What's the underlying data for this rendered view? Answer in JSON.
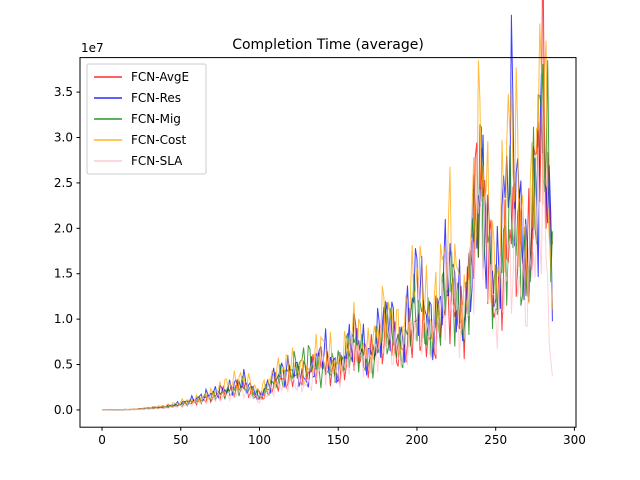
{
  "chart_data": {
    "type": "line",
    "title": "Completion Time (average)",
    "xlabel": "",
    "ylabel": "",
    "y_offset_label": "1e7",
    "xlim": [
      -14,
      301
    ],
    "ylim": [
      -1900000,
      38800000
    ],
    "xticks": [
      0,
      50,
      100,
      150,
      200,
      250,
      300
    ],
    "xtick_labels": [
      "0",
      "50",
      "100",
      "150",
      "200",
      "250",
      "300"
    ],
    "yticks": [
      0,
      5000000,
      10000000,
      15000000,
      20000000,
      25000000,
      30000000,
      35000000
    ],
    "ytick_labels": [
      "0.0",
      "0.5",
      "1.0",
      "1.5",
      "2.0",
      "2.5",
      "3.0",
      "3.5"
    ],
    "grid": false,
    "legend_position": "top-left",
    "series": [
      {
        "name": "FCN-AvgE",
        "color": "#ff0000",
        "x": [
          0,
          20,
          40,
          50,
          60,
          70,
          80,
          90,
          100,
          110,
          120,
          130,
          140,
          150,
          160,
          170,
          180,
          190,
          200,
          210,
          220,
          230,
          240,
          250,
          260,
          270,
          280,
          286
        ],
        "values": [
          0,
          50000,
          300000,
          500000,
          900000,
          1300000,
          2000000,
          2500000,
          1200000,
          2800000,
          3400000,
          4000000,
          5000000,
          3500000,
          6500000,
          5500000,
          8000000,
          6000000,
          9000000,
          7000000,
          12000000,
          9000000,
          25500000,
          10000000,
          20000000,
          15000000,
          34500000,
          15000000
        ]
      },
      {
        "name": "FCN-Res",
        "color": "#0000ff",
        "x": [
          0,
          20,
          40,
          50,
          60,
          70,
          80,
          90,
          100,
          110,
          120,
          130,
          140,
          150,
          160,
          170,
          180,
          190,
          200,
          210,
          220,
          230,
          240,
          250,
          260,
          270,
          280,
          286
        ],
        "values": [
          0,
          60000,
          350000,
          700000,
          1200000,
          1800000,
          2200000,
          3100000,
          1500000,
          3500000,
          4500000,
          3000000,
          6500000,
          4000000,
          8000000,
          5500000,
          10000000,
          7000000,
          14000000,
          8000000,
          16000000,
          9000000,
          24000000,
          12000000,
          30000000,
          14000000,
          28000000,
          16000000
        ]
      },
      {
        "name": "FCN-Mig",
        "color": "#008000",
        "x": [
          0,
          20,
          40,
          50,
          60,
          70,
          80,
          90,
          100,
          110,
          120,
          130,
          140,
          150,
          160,
          170,
          180,
          190,
          200,
          210,
          220,
          230,
          240,
          250,
          260,
          270,
          280,
          286
        ],
        "values": [
          0,
          40000,
          250000,
          600000,
          1000000,
          1500000,
          1800000,
          2600000,
          1300000,
          3000000,
          4200000,
          5500000,
          3800000,
          5000000,
          7000000,
          4500000,
          9000000,
          6000000,
          11000000,
          7500000,
          13500000,
          8500000,
          24000000,
          11000000,
          21000000,
          13000000,
          34000000,
          17500000
        ]
      },
      {
        "name": "FCN-Cost",
        "color": "#ffa500",
        "x": [
          0,
          20,
          40,
          50,
          60,
          70,
          80,
          90,
          100,
          110,
          120,
          130,
          140,
          150,
          160,
          170,
          180,
          190,
          200,
          210,
          220,
          230,
          240,
          250,
          260,
          270,
          280,
          286
        ],
        "values": [
          0,
          70000,
          400000,
          800000,
          1100000,
          1700000,
          2800000,
          3300000,
          1800000,
          3800000,
          5000000,
          3700000,
          7000000,
          4500000,
          8500000,
          6000000,
          10500000,
          7500000,
          15000000,
          9000000,
          19000000,
          10000000,
          29000000,
          13000000,
          31500000,
          15000000,
          37000000,
          12000000
        ]
      },
      {
        "name": "FCN-SLA",
        "color": "#ffc0cb",
        "x": [
          0,
          20,
          40,
          50,
          60,
          70,
          80,
          90,
          100,
          110,
          120,
          130,
          140,
          150,
          160,
          170,
          180,
          190,
          200,
          210,
          220,
          230,
          240,
          250,
          260,
          270,
          280,
          286
        ],
        "values": [
          0,
          30000,
          200000,
          400000,
          800000,
          1200000,
          1500000,
          2000000,
          1000000,
          2400000,
          3000000,
          2500000,
          4800000,
          3500000,
          6000000,
          5000000,
          7500000,
          5500000,
          10000000,
          7000000,
          13000000,
          8000000,
          22000000,
          9500000,
          16000000,
          12000000,
          23000000,
          2500000
        ]
      }
    ]
  }
}
